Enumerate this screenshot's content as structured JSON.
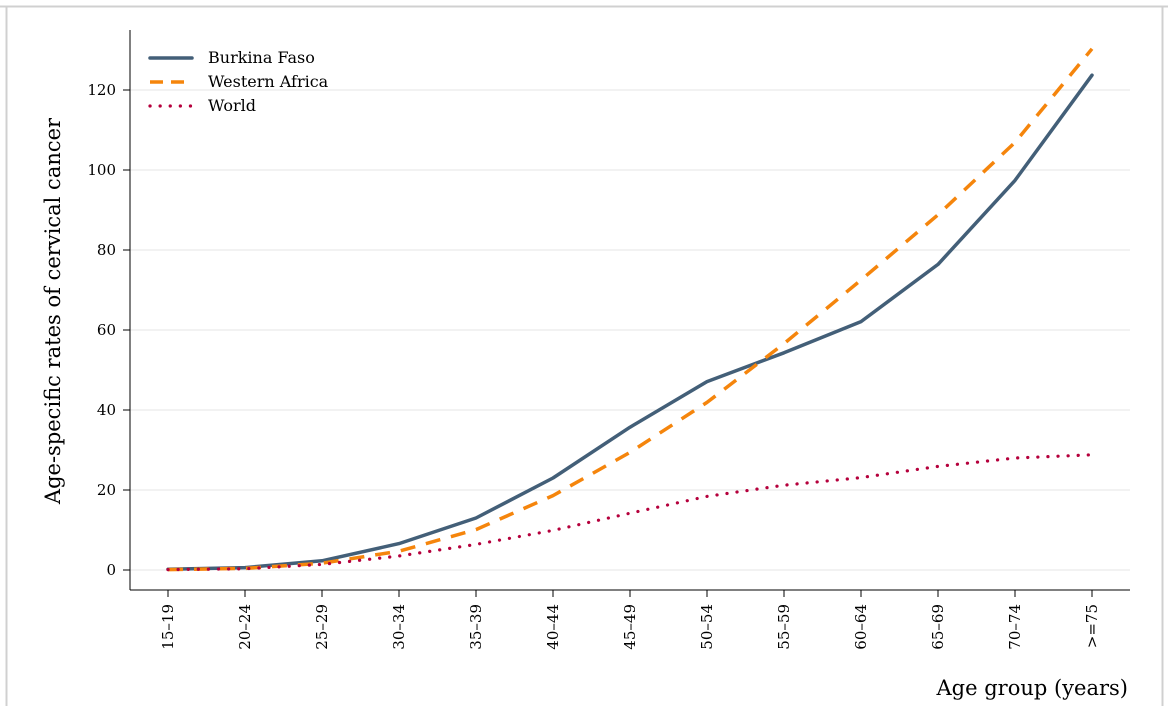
{
  "chart_data": {
    "type": "line",
    "title": "",
    "xlabel": "Age group (years)",
    "ylabel": "Age-specific rates of cervical cancer",
    "categories": [
      "15–19",
      "20–24",
      "25–29",
      "30–34",
      "35–39",
      "40–44",
      "45–49",
      "50–54",
      "55–59",
      "60–64",
      "65–69",
      "70–74",
      ">=75"
    ],
    "ylim": [
      -5,
      135
    ],
    "yticks": [
      0,
      20,
      40,
      60,
      80,
      100,
      120
    ],
    "grid": true,
    "legend_position": "top-left",
    "series": [
      {
        "name": "Burkina Faso",
        "color": "#435f78",
        "dash": "solid",
        "values": [
          0.2,
          0.6,
          2.3,
          6.6,
          13.0,
          23.0,
          35.7,
          47.1,
          54.3,
          62.1,
          76.4,
          97.4,
          123.7
        ]
      },
      {
        "name": "Western Africa",
        "color": "#f5850c",
        "dash": "dashed",
        "values": [
          0.1,
          0.4,
          1.7,
          4.7,
          10.1,
          18.6,
          29.4,
          41.9,
          56.6,
          72.5,
          88.8,
          106.9,
          130.3
        ]
      },
      {
        "name": "World",
        "color": "#b5003c",
        "dash": "dotted",
        "values": [
          0.1,
          0.3,
          1.4,
          3.5,
          6.4,
          9.9,
          14.2,
          18.4,
          21.2,
          23.1,
          25.9,
          28.0,
          28.8
        ]
      }
    ]
  }
}
